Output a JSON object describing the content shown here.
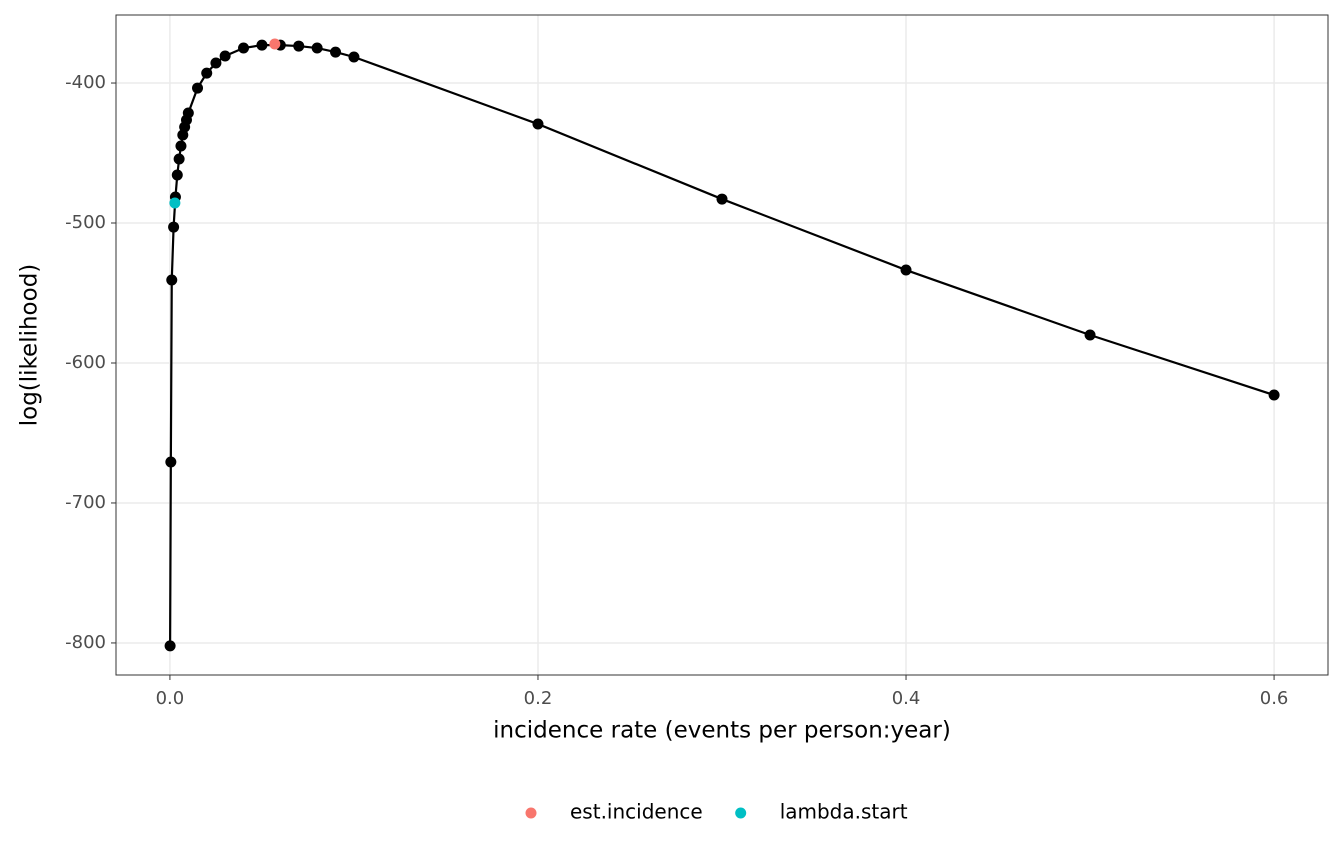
{
  "chart_data": {
    "type": "line",
    "x_label": "incidence rate (events per person:year)",
    "y_label": "log(likelihood)",
    "xlim": [
      -0.0293,
      0.6293
    ],
    "ylim": [
      -822.9,
      -351.4
    ],
    "xticks": [
      {
        "value": 0,
        "label": "0.0"
      },
      0.2,
      0.4,
      0.6
    ],
    "yticks": [
      -400,
      -500,
      -600,
      -700,
      -800
    ],
    "grid": true,
    "legend": "bottom",
    "series": [
      {
        "color": "#000000",
        "x": [
          0.0001,
          0.0005,
          0.001,
          0.002,
          0.003,
          0.004,
          0.005,
          0.006,
          0.007,
          0.008,
          0.009,
          0.01,
          0.015,
          0.02,
          0.025,
          0.03,
          0.04,
          0.05,
          0.06,
          0.07,
          0.08,
          0.09,
          0.1,
          0.2,
          0.3,
          0.4,
          0.5,
          0.6
        ],
        "values": [
          -802.1,
          -670.7,
          -540.7,
          -502.9,
          -481.4,
          -465.7,
          -454.3,
          -445,
          -437.1,
          -431.4,
          -426.4,
          -421.4,
          -403.6,
          -392.9,
          -385.7,
          -380.7,
          -375,
          -372.9,
          -372.9,
          -373.6,
          -375,
          -377.9,
          -381.4,
          -429.3,
          -482.9,
          -533.6,
          -580,
          -622.9
        ]
      },
      {
        "name": "est.incidence",
        "color": "#F8766D",
        "x": [
          0.057
        ],
        "values": [
          -372.1
        ]
      },
      {
        "name": "lambda.start",
        "color": "#00BFC4",
        "x": [
          0.0027
        ],
        "values": [
          -485.7
        ]
      }
    ]
  }
}
